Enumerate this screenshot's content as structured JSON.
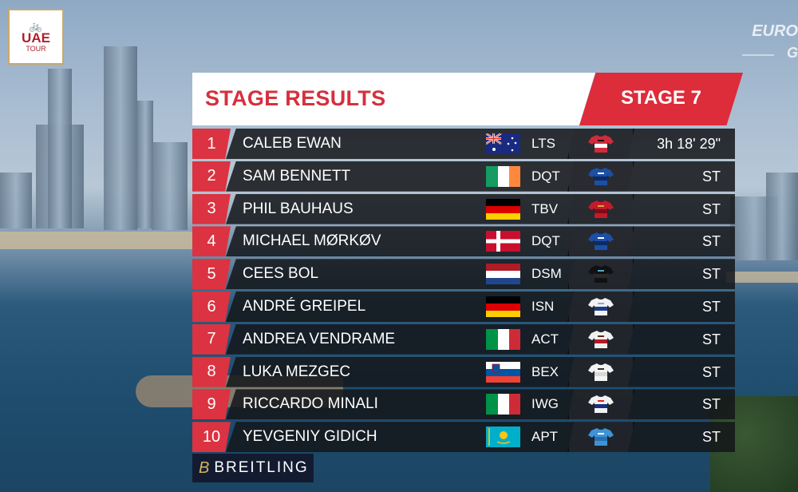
{
  "logo": {
    "top_text": "UAE",
    "bottom_text": "TOUR"
  },
  "broadcaster": {
    "text": "EURO",
    "sub": "G"
  },
  "header": {
    "title": "STAGE RESULTS",
    "stage": "STAGE 7"
  },
  "colors": {
    "accent_red": "#dd2c3a",
    "row_bg": "#14161a",
    "title_red": "#d6303e"
  },
  "results": [
    {
      "rank": "1",
      "name": "CALEB EWAN",
      "flag": "australia-flag",
      "team": "LTS",
      "jersey": "lotto-soudal-jersey",
      "time": "3h 18' 29\""
    },
    {
      "rank": "2",
      "name": "SAM BENNETT",
      "flag": "ireland-flag",
      "team": "DQT",
      "jersey": "deceuninck-quickstep-jersey",
      "time": "ST"
    },
    {
      "rank": "3",
      "name": "PHIL BAUHAUS",
      "flag": "germany-flag",
      "team": "TBV",
      "jersey": "bahrain-victorious-jersey",
      "time": "ST"
    },
    {
      "rank": "4",
      "name": "MICHAEL MØRKØV",
      "flag": "denmark-flag",
      "team": "DQT",
      "jersey": "deceuninck-quickstep-jersey",
      "time": "ST"
    },
    {
      "rank": "5",
      "name": "CEES BOL",
      "flag": "netherlands-flag",
      "team": "DSM",
      "jersey": "team-dsm-jersey",
      "time": "ST"
    },
    {
      "rank": "6",
      "name": "ANDRÉ GREIPEL",
      "flag": "germany-flag",
      "team": "ISN",
      "jersey": "israel-startup-nation-jersey",
      "time": "ST"
    },
    {
      "rank": "7",
      "name": "ANDREA VENDRAME",
      "flag": "italy-flag",
      "team": "ACT",
      "jersey": "ag2r-citroen-jersey",
      "time": "ST"
    },
    {
      "rank": "8",
      "name": "LUKA MEZGEC",
      "flag": "slovenia-flag",
      "team": "BEX",
      "jersey": "team-bikeexchange-jersey",
      "time": "ST"
    },
    {
      "rank": "9",
      "name": "RICCARDO MINALI",
      "flag": "italy-flag",
      "team": "IWG",
      "jersey": "intermarche-wanty-jersey",
      "time": "ST"
    },
    {
      "rank": "10",
      "name": "YEVGENIY GIDICH",
      "flag": "kazakhstan-flag",
      "team": "APT",
      "jersey": "astana-premier-tech-jersey",
      "time": "ST"
    }
  ],
  "sponsor": {
    "text": "BREITLING"
  }
}
